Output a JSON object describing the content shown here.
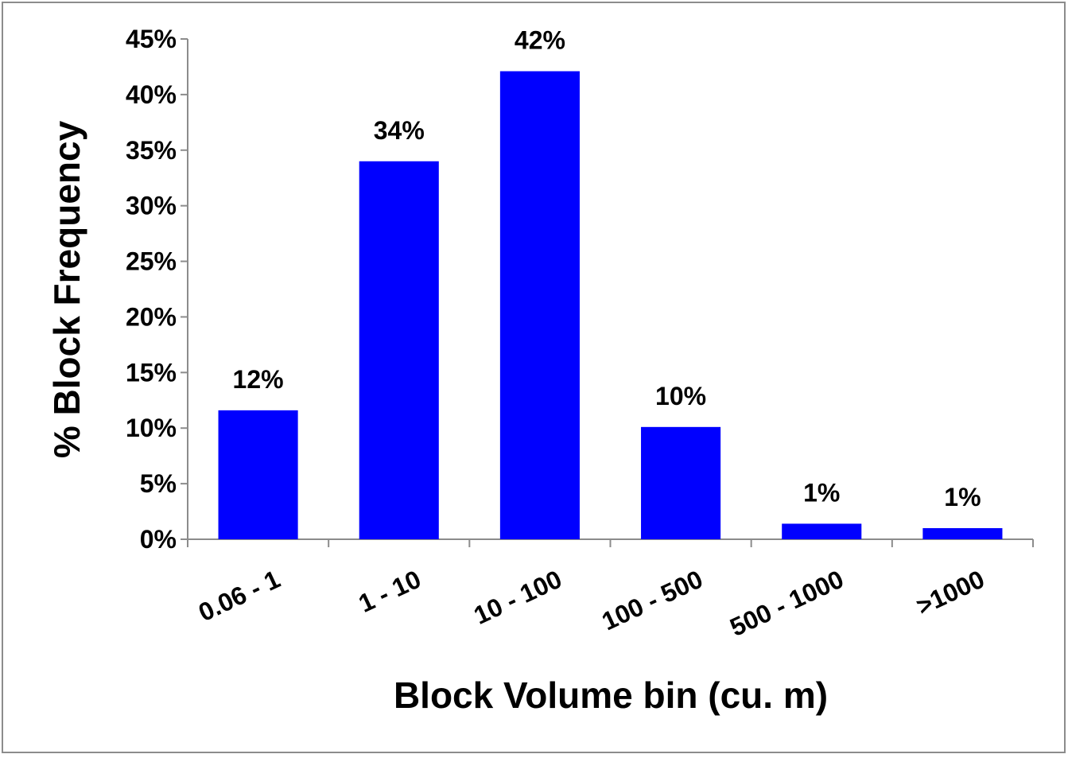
{
  "chart_data": {
    "type": "bar",
    "title": "",
    "xlabel": "Block Volume bin (cu. m)",
    "ylabel": "% Block Frequency",
    "categories": [
      "0.06 - 1",
      "1 - 10",
      "10 - 100",
      "100 - 500",
      "500 - 1000",
      ">1000"
    ],
    "values": [
      11.6,
      34.0,
      42.1,
      10.1,
      1.4,
      1.0
    ],
    "data_labels": [
      "12%",
      "34%",
      "42%",
      "10%",
      "1%",
      "1%"
    ],
    "ylim": [
      0,
      45
    ],
    "yticks": [
      "0%",
      "5%",
      "10%",
      "15%",
      "20%",
      "25%",
      "30%",
      "35%",
      "40%",
      "45%"
    ],
    "bar_color": "#0000ff",
    "grid": false,
    "legend": "none"
  }
}
